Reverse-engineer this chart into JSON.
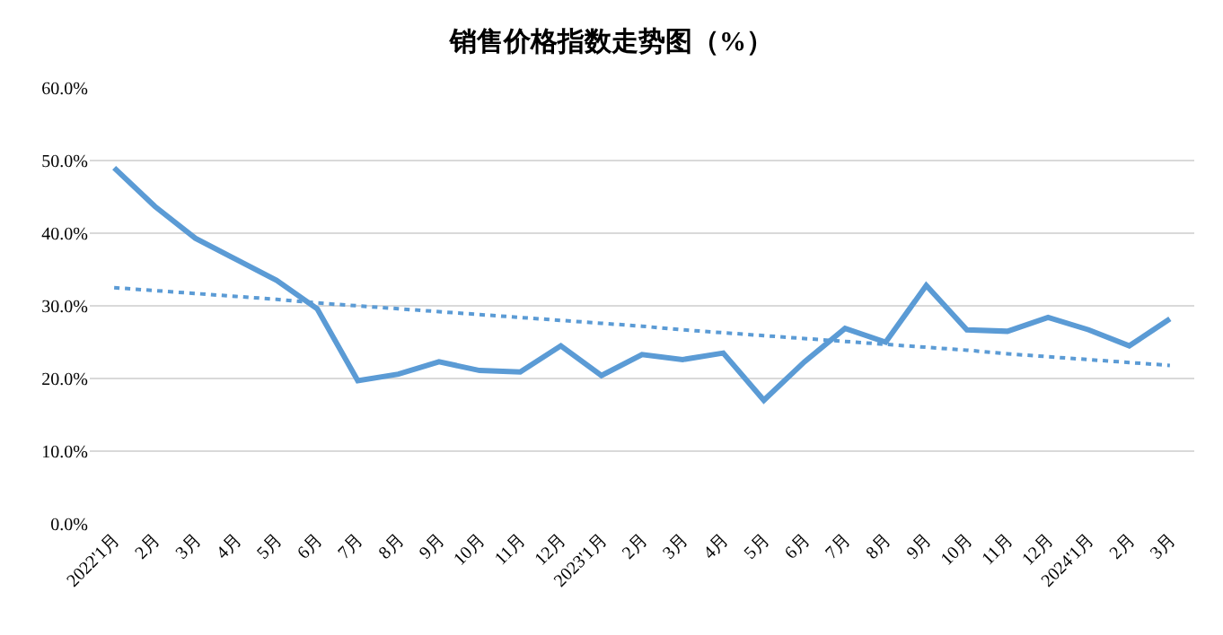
{
  "chart_data": {
    "type": "line",
    "title": "销售价格指数走势图（%）",
    "categories": [
      "2022'1月",
      "2月",
      "3月",
      "4月",
      "5月",
      "6月",
      "7月",
      "8月",
      "9月",
      "10月",
      "11月",
      "12月",
      "2023'1月",
      "2月",
      "3月",
      "4月",
      "5月",
      "6月",
      "7月",
      "8月",
      "9月",
      "10月",
      "11月",
      "12月",
      "2024'1月",
      "2月",
      "3月"
    ],
    "series": [
      {
        "color": "#5b9bd5",
        "values": [
          49.0,
          43.7,
          39.3,
          36.4,
          33.5,
          29.6,
          19.7,
          20.6,
          22.3,
          21.1,
          20.9,
          24.5,
          20.4,
          23.3,
          22.6,
          23.5,
          17.0,
          22.3,
          26.9,
          25.0,
          32.8,
          26.7,
          26.5,
          28.4,
          26.7,
          24.5,
          28.2
        ]
      },
      {
        "type": "line",
        "color": "#5b9bd5",
        "line_style": "dotted",
        "values": [
          32.5,
          32.1,
          31.7,
          31.3,
          30.9,
          30.4,
          30.0,
          29.6,
          29.2,
          28.8,
          28.4,
          28.0,
          27.6,
          27.2,
          26.7,
          26.3,
          25.9,
          25.5,
          25.1,
          24.7,
          24.3,
          23.9,
          23.4,
          23.0,
          22.6,
          22.2,
          21.8
        ]
      }
    ],
    "ylim": [
      0,
      60
    ],
    "yticks": [
      {
        "value": 0,
        "label": "0.0%"
      },
      {
        "value": 10,
        "label": "10.0%"
      },
      {
        "value": 20,
        "label": "20.0%"
      },
      {
        "value": 30,
        "label": "30.0%"
      },
      {
        "value": 40,
        "label": "40.0%"
      },
      {
        "value": 50,
        "label": "50.0%"
      },
      {
        "value": 60,
        "label": "60.0%"
      }
    ],
    "grid": "y",
    "marker": "none",
    "line_style": "solid"
  }
}
